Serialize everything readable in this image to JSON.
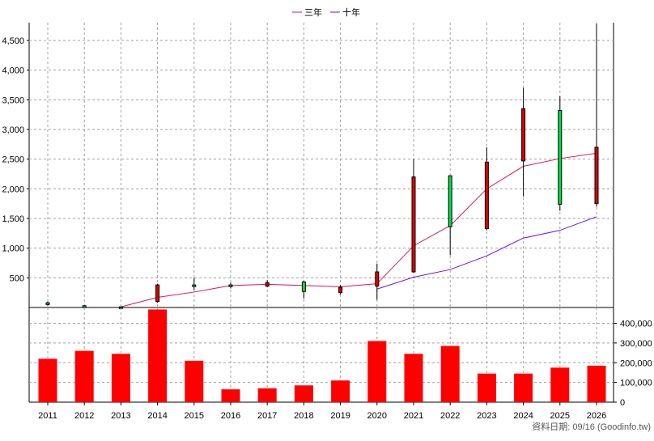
{
  "legend": {
    "items": [
      {
        "label": "三年",
        "color": "#e0115f"
      },
      {
        "label": "十年",
        "color": "#6a0dff"
      }
    ]
  },
  "footer": {
    "source_text": "資料日期: 09/16  (Goodinfo.tw)"
  },
  "colors": {
    "up": "#e00000",
    "down": "#00e040",
    "volume": "#ff0000",
    "grid": "#a0a0a0"
  },
  "chart_data": [
    {
      "type": "candlestick",
      "x": [
        "2011",
        "2012",
        "2013",
        "2014",
        "2015",
        "2016",
        "2017",
        "2018",
        "2019",
        "2020",
        "2021",
        "2022",
        "2023",
        "2024",
        "2025",
        "2026"
      ],
      "ylim": [
        0,
        4800
      ],
      "yticks": [
        500,
        1000,
        1500,
        2000,
        2500,
        3000,
        3500,
        4000,
        4500
      ],
      "ytick_labels": [
        "500",
        "1,000",
        "1,500",
        "2,000",
        "2,500",
        "3,000",
        "3,500",
        "4,000",
        "4,500"
      ],
      "grid": true,
      "candles": [
        {
          "x": "2011",
          "open": 80,
          "close": 50,
          "high": 100,
          "low": 30,
          "dir": "down"
        },
        {
          "x": "2012",
          "open": 30,
          "close": 20,
          "high": 40,
          "low": 10,
          "dir": "down"
        },
        {
          "x": "2013",
          "open": 10,
          "close": 10,
          "high": 15,
          "low": 5,
          "dir": "down"
        },
        {
          "x": "2014",
          "open": 100,
          "close": 380,
          "high": 400,
          "low": 80,
          "dir": "up"
        },
        {
          "x": "2015",
          "open": 380,
          "close": 360,
          "high": 500,
          "low": 300,
          "dir": "down"
        },
        {
          "x": "2016",
          "open": 380,
          "close": 370,
          "high": 420,
          "low": 320,
          "dir": "down"
        },
        {
          "x": "2017",
          "open": 360,
          "close": 420,
          "high": 460,
          "low": 340,
          "dir": "up"
        },
        {
          "x": "2018",
          "open": 430,
          "close": 270,
          "high": 450,
          "low": 150,
          "dir": "down"
        },
        {
          "x": "2019",
          "open": 250,
          "close": 340,
          "high": 380,
          "low": 220,
          "dir": "up"
        },
        {
          "x": "2020",
          "open": 360,
          "close": 600,
          "high": 740,
          "low": 130,
          "dir": "up"
        },
        {
          "x": "2021",
          "open": 600,
          "close": 2200,
          "high": 2500,
          "low": 580,
          "dir": "up"
        },
        {
          "x": "2022",
          "open": 2220,
          "close": 1360,
          "high": 2220,
          "low": 880,
          "dir": "down"
        },
        {
          "x": "2023",
          "open": 1330,
          "close": 2450,
          "high": 2700,
          "low": 1300,
          "dir": "up"
        },
        {
          "x": "2024",
          "open": 2470,
          "close": 3350,
          "high": 3700,
          "low": 1870,
          "dir": "up"
        },
        {
          "x": "2025",
          "open": 3320,
          "close": 1740,
          "high": 3560,
          "low": 1630,
          "dir": "down"
        },
        {
          "x": "2026",
          "open": 1750,
          "close": 2700,
          "high": 4780,
          "low": 1700,
          "dir": "up"
        }
      ],
      "series": [
        {
          "name": "三年",
          "values": [
            null,
            null,
            10,
            170,
            260,
            370,
            390,
            370,
            350,
            400,
            1040,
            1380,
            2000,
            2380,
            2510,
            2600
          ]
        },
        {
          "name": "十年",
          "values": [
            null,
            null,
            null,
            null,
            null,
            null,
            null,
            null,
            null,
            310,
            510,
            640,
            870,
            1170,
            1300,
            1530
          ]
        }
      ]
    },
    {
      "type": "bar",
      "x": [
        "2011",
        "2012",
        "2013",
        "2014",
        "2015",
        "2016",
        "2017",
        "2018",
        "2019",
        "2020",
        "2021",
        "2022",
        "2023",
        "2024",
        "2025",
        "2026"
      ],
      "values": [
        220000,
        260000,
        245000,
        470000,
        210000,
        65000,
        70000,
        85000,
        110000,
        310000,
        245000,
        285000,
        145000,
        145000,
        175000,
        185000
      ],
      "ylim": [
        0,
        480000
      ],
      "yticks": [
        0,
        100000,
        200000,
        300000,
        400000
      ],
      "ytick_labels": [
        "0",
        "100,000",
        "200,000",
        "300,000",
        "400,000"
      ],
      "grid": true
    }
  ]
}
